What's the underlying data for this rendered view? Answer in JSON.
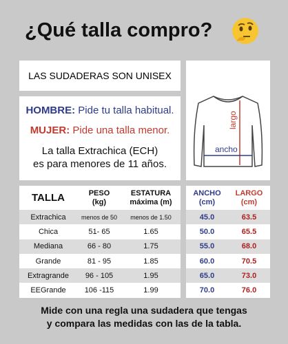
{
  "header": {
    "title": "¿Qué talla compro?"
  },
  "notes": {
    "unisex": "LAS SUDADERAS SON UNISEX",
    "hombre_label": "HOMBRE:",
    "hombre_text": "Pide tu talla habitual.",
    "mujer_label": "MUJER:",
    "mujer_text": "Pide una talla menor.",
    "extrachica": [
      "La talla Extrachica (ECH)",
      "es para menores de 11 años."
    ]
  },
  "diagram": {
    "largo": "largo",
    "ancho": "ancho"
  },
  "table": {
    "columns": [
      [
        "TALLA"
      ],
      [
        "PESO",
        "(kg)"
      ],
      [
        "ESTATURA",
        "máxima (m)"
      ],
      [
        "ANCHO",
        "(cm)"
      ],
      [
        "LARGO",
        "(cm)"
      ]
    ],
    "rows": [
      [
        "Extrachica",
        "menos de 50",
        "menos de 1.50",
        "45.0",
        "63.5"
      ],
      [
        "Chica",
        "51- 65",
        "1.65",
        "50.0",
        "65.5"
      ],
      [
        "Mediana",
        "66 - 80",
        "1.75",
        "55.0",
        "68.0"
      ],
      [
        "Grande",
        "81 - 95",
        "1.85",
        "60.0",
        "70.5"
      ],
      [
        "Extragrande",
        "96 - 105",
        "1.95",
        "65.0",
        "73.0"
      ],
      [
        "EEGrande",
        "106 -115",
        "1.99",
        "70.0",
        "76.0"
      ]
    ]
  },
  "footer": [
    "Mide con una regla una sudadera que tengas",
    "y compara las medidas con las de la tabla."
  ]
}
